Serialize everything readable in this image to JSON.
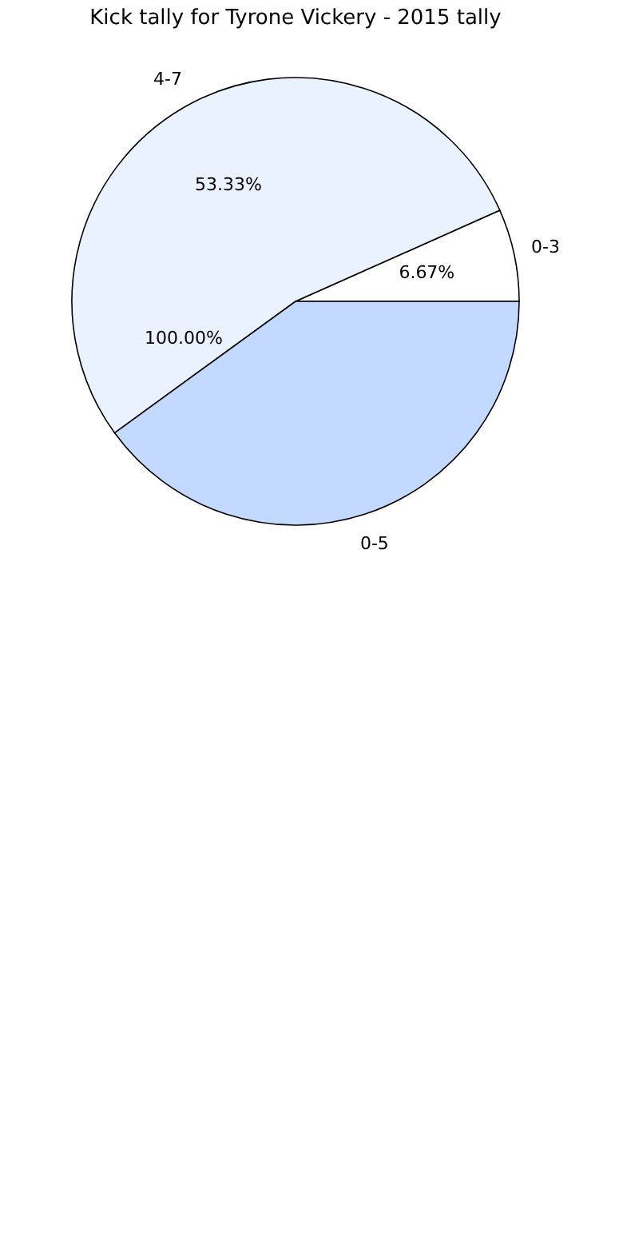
{
  "chart_data": {
    "type": "pie",
    "title": "Kick tally for Tyrone Vickery - 2015 tally",
    "categories": [
      "0-3",
      "4-7",
      "0-5"
    ],
    "values": [
      6.67,
      53.33,
      40
    ],
    "colors": [
      "#ffffff",
      "#eaf1ff",
      "#c4d9ff"
    ],
    "value_labels": [
      "6.67%",
      "53.33%",
      null
    ],
    "annotations": [
      "100.00%"
    ],
    "legend": false
  }
}
